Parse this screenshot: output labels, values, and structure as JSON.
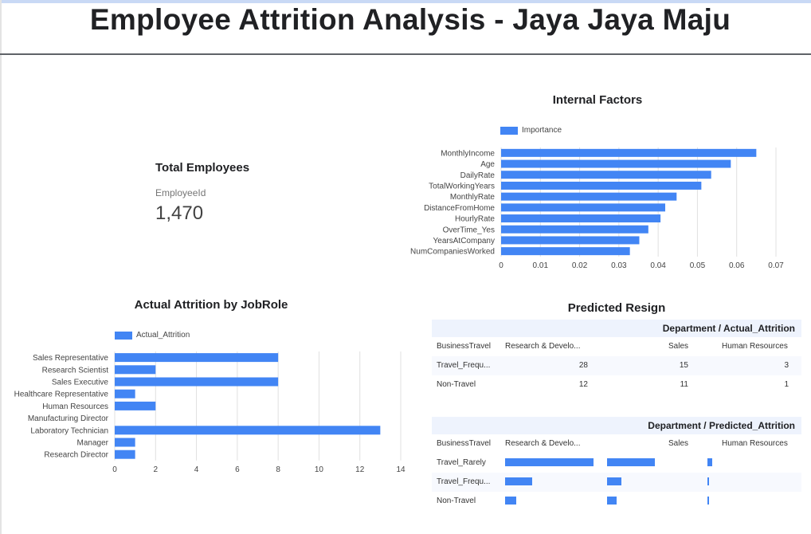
{
  "page_title": "Employee Attrition Analysis - Jaya Jaya Maju",
  "scorecard": {
    "title": "Total Employees",
    "label": "EmployeeId",
    "value": "1,470"
  },
  "colors": {
    "bar": "#4285f4",
    "grid": "#e0e0e0"
  },
  "internal_factors": {
    "chart_data": {
      "type": "bar",
      "orientation": "horizontal",
      "title": "Internal Factors",
      "legend": "Importance",
      "categories": [
        "MonthlyIncome",
        "Age",
        "DailyRate",
        "TotalWorkingYears",
        "MonthlyRate",
        "DistanceFromHome",
        "HourlyRate",
        "OverTime_Yes",
        "YearsAtCompany",
        "NumCompaniesWorked"
      ],
      "values": [
        0.065,
        0.0585,
        0.0535,
        0.051,
        0.0447,
        0.0418,
        0.0406,
        0.0375,
        0.0352,
        0.0328
      ],
      "xlim": [
        0,
        0.07
      ],
      "xticks": [
        "0",
        "0.01",
        "0.02",
        "0.03",
        "0.04",
        "0.05",
        "0.06",
        "0.07"
      ],
      "grid": true,
      "legend_position": "top-left"
    }
  },
  "attrition_jobrole": {
    "chart_data": {
      "type": "bar",
      "orientation": "horizontal",
      "title": "Actual Attrition by JobRole",
      "legend": "Actual_Attrition",
      "categories": [
        "Sales Representative",
        "Research Scientist",
        "Sales Executive",
        "Healthcare Representative",
        "Human Resources",
        "Manufacturing Director",
        "Laboratory Technician",
        "Manager",
        "Research Director"
      ],
      "values": [
        8,
        2,
        8,
        1,
        2,
        0,
        13,
        1,
        1
      ],
      "xlim": [
        0,
        14
      ],
      "xticks": [
        "0",
        "2",
        "4",
        "6",
        "8",
        "10",
        "12",
        "14"
      ],
      "grid": true,
      "legend_position": "top-left"
    }
  },
  "predicted_resign": {
    "title": "Predicted Resign",
    "actual_table": {
      "header": "Department / Actual_Attrition",
      "columns": [
        "BusinessTravel",
        "Research & Develo...",
        "Sales",
        "Human Resources"
      ],
      "rows": [
        {
          "label": "Travel_Frequ...",
          "values": [
            "28",
            "15",
            "3"
          ]
        },
        {
          "label": "Non-Travel",
          "values": [
            "12",
            "11",
            "1"
          ]
        }
      ]
    },
    "predicted_table": {
      "header": "Department / Predicted_Attrition",
      "columns": [
        "BusinessTravel",
        "Research & Develo...",
        "Sales",
        "Human Resources"
      ],
      "rows": [
        {
          "label": "Travel_Rarely",
          "values": [
            1.0,
            0.54,
            0.05
          ]
        },
        {
          "label": "Travel_Frequ...",
          "values": [
            0.31,
            0.16,
            0.02
          ]
        },
        {
          "label": "Non-Travel",
          "values": [
            0.13,
            0.11,
            0.01
          ]
        }
      ]
    }
  }
}
